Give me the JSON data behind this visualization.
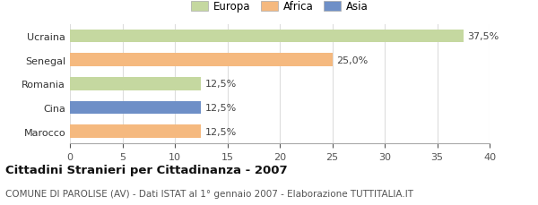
{
  "categories": [
    "Marocco",
    "Cina",
    "Romania",
    "Senegal",
    "Ucraina"
  ],
  "values": [
    12.5,
    12.5,
    12.5,
    25.0,
    37.5
  ],
  "bar_colors": [
    "#f5b97f",
    "#6e8fc7",
    "#c5d8a0",
    "#f5b97f",
    "#c5d8a0"
  ],
  "value_labels": [
    "12,5%",
    "12,5%",
    "12,5%",
    "25,0%",
    "37,5%"
  ],
  "legend_entries": [
    {
      "label": "Europa",
      "color": "#c5d8a0"
    },
    {
      "label": "Africa",
      "color": "#f5b97f"
    },
    {
      "label": "Asia",
      "color": "#6e8fc7"
    }
  ],
  "xlim": [
    0,
    40
  ],
  "xticks": [
    0,
    5,
    10,
    15,
    20,
    25,
    30,
    35,
    40
  ],
  "title": "Cittadini Stranieri per Cittadinanza - 2007",
  "subtitle": "COMUNE DI PAROLISE (AV) - Dati ISTAT al 1° gennaio 2007 - Elaborazione TUTTITALIA.IT",
  "title_fontsize": 9.5,
  "subtitle_fontsize": 7.5,
  "background_color": "#ffffff",
  "grid_color": "#dddddd",
  "label_fontsize": 8,
  "tick_fontsize": 8
}
